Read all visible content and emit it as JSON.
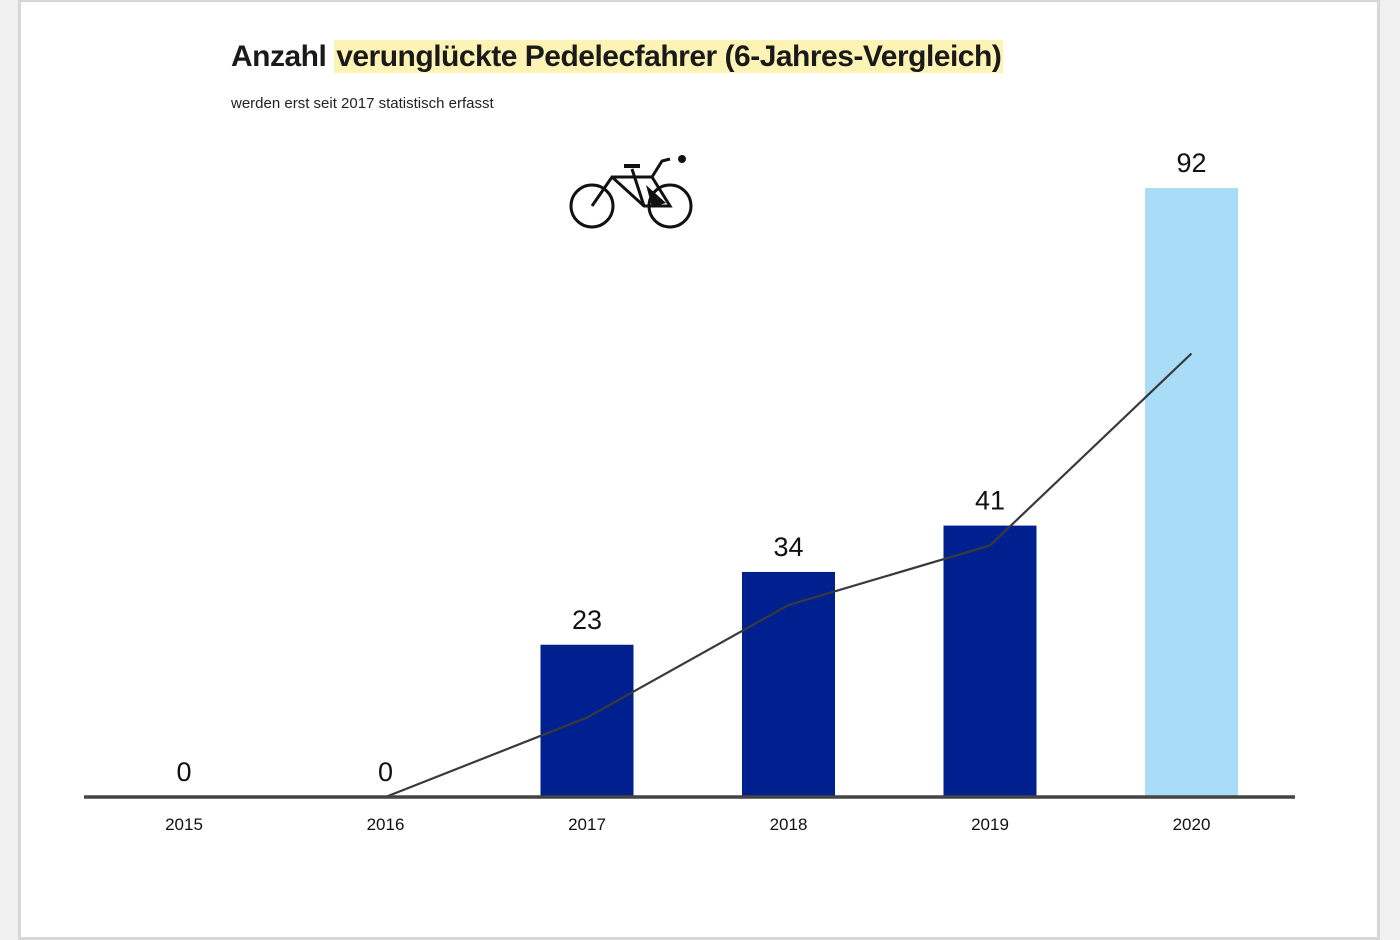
{
  "title_part1": "Anzahl",
  "title_part2": "verunglückte Pedelecfahrer (6-Jahres-Vergleich)",
  "subtitle": "werden erst seit 2017 statistisch erfasst",
  "icon": "bicycle-icon",
  "colors": {
    "bar_default": "#00208f",
    "bar_highlight": "#a8dcf7",
    "trend_line": "#3a3a3a",
    "axis": "#444444",
    "title_highlight": "#fcf3b4"
  },
  "chart_data": {
    "type": "bar",
    "categories": [
      "2015",
      "2016",
      "2017",
      "2018",
      "2019",
      "2020"
    ],
    "values": [
      0,
      0,
      23,
      34,
      41,
      92
    ],
    "data_labels": [
      "0",
      "0",
      "23",
      "34",
      "41",
      "92"
    ],
    "highlight_index": 5,
    "trendline": {
      "type": "line",
      "starts_at": "2016",
      "values": [
        null,
        0,
        12,
        29,
        38,
        67
      ]
    },
    "ylim": [
      0,
      92
    ],
    "grid": false,
    "legend": "none"
  }
}
